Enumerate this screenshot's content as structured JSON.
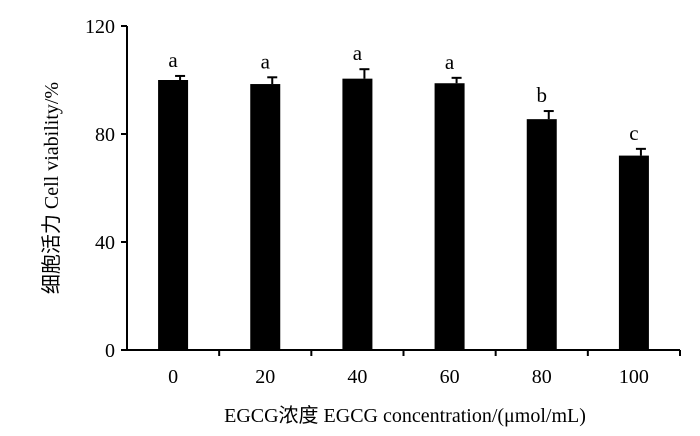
{
  "chart_data": {
    "type": "bar",
    "title": "",
    "xlabel": "EGCG浓度 EGCG concentration/(μmol/mL)",
    "ylabel": "细胞活力 Cell viability/%",
    "categories": [
      "0",
      "20",
      "40",
      "60",
      "80",
      "100"
    ],
    "values": [
      100,
      98.5,
      100.5,
      98.8,
      85.5,
      72
    ],
    "errors": [
      1.5,
      2.5,
      3.5,
      2.0,
      3.0,
      2.5
    ],
    "significance": [
      "a",
      "a",
      "a",
      "a",
      "b",
      "c"
    ],
    "yticks": [
      0,
      40,
      80,
      120
    ],
    "ylim": [
      0,
      120
    ],
    "grid": false,
    "bar_color": "#000000"
  }
}
